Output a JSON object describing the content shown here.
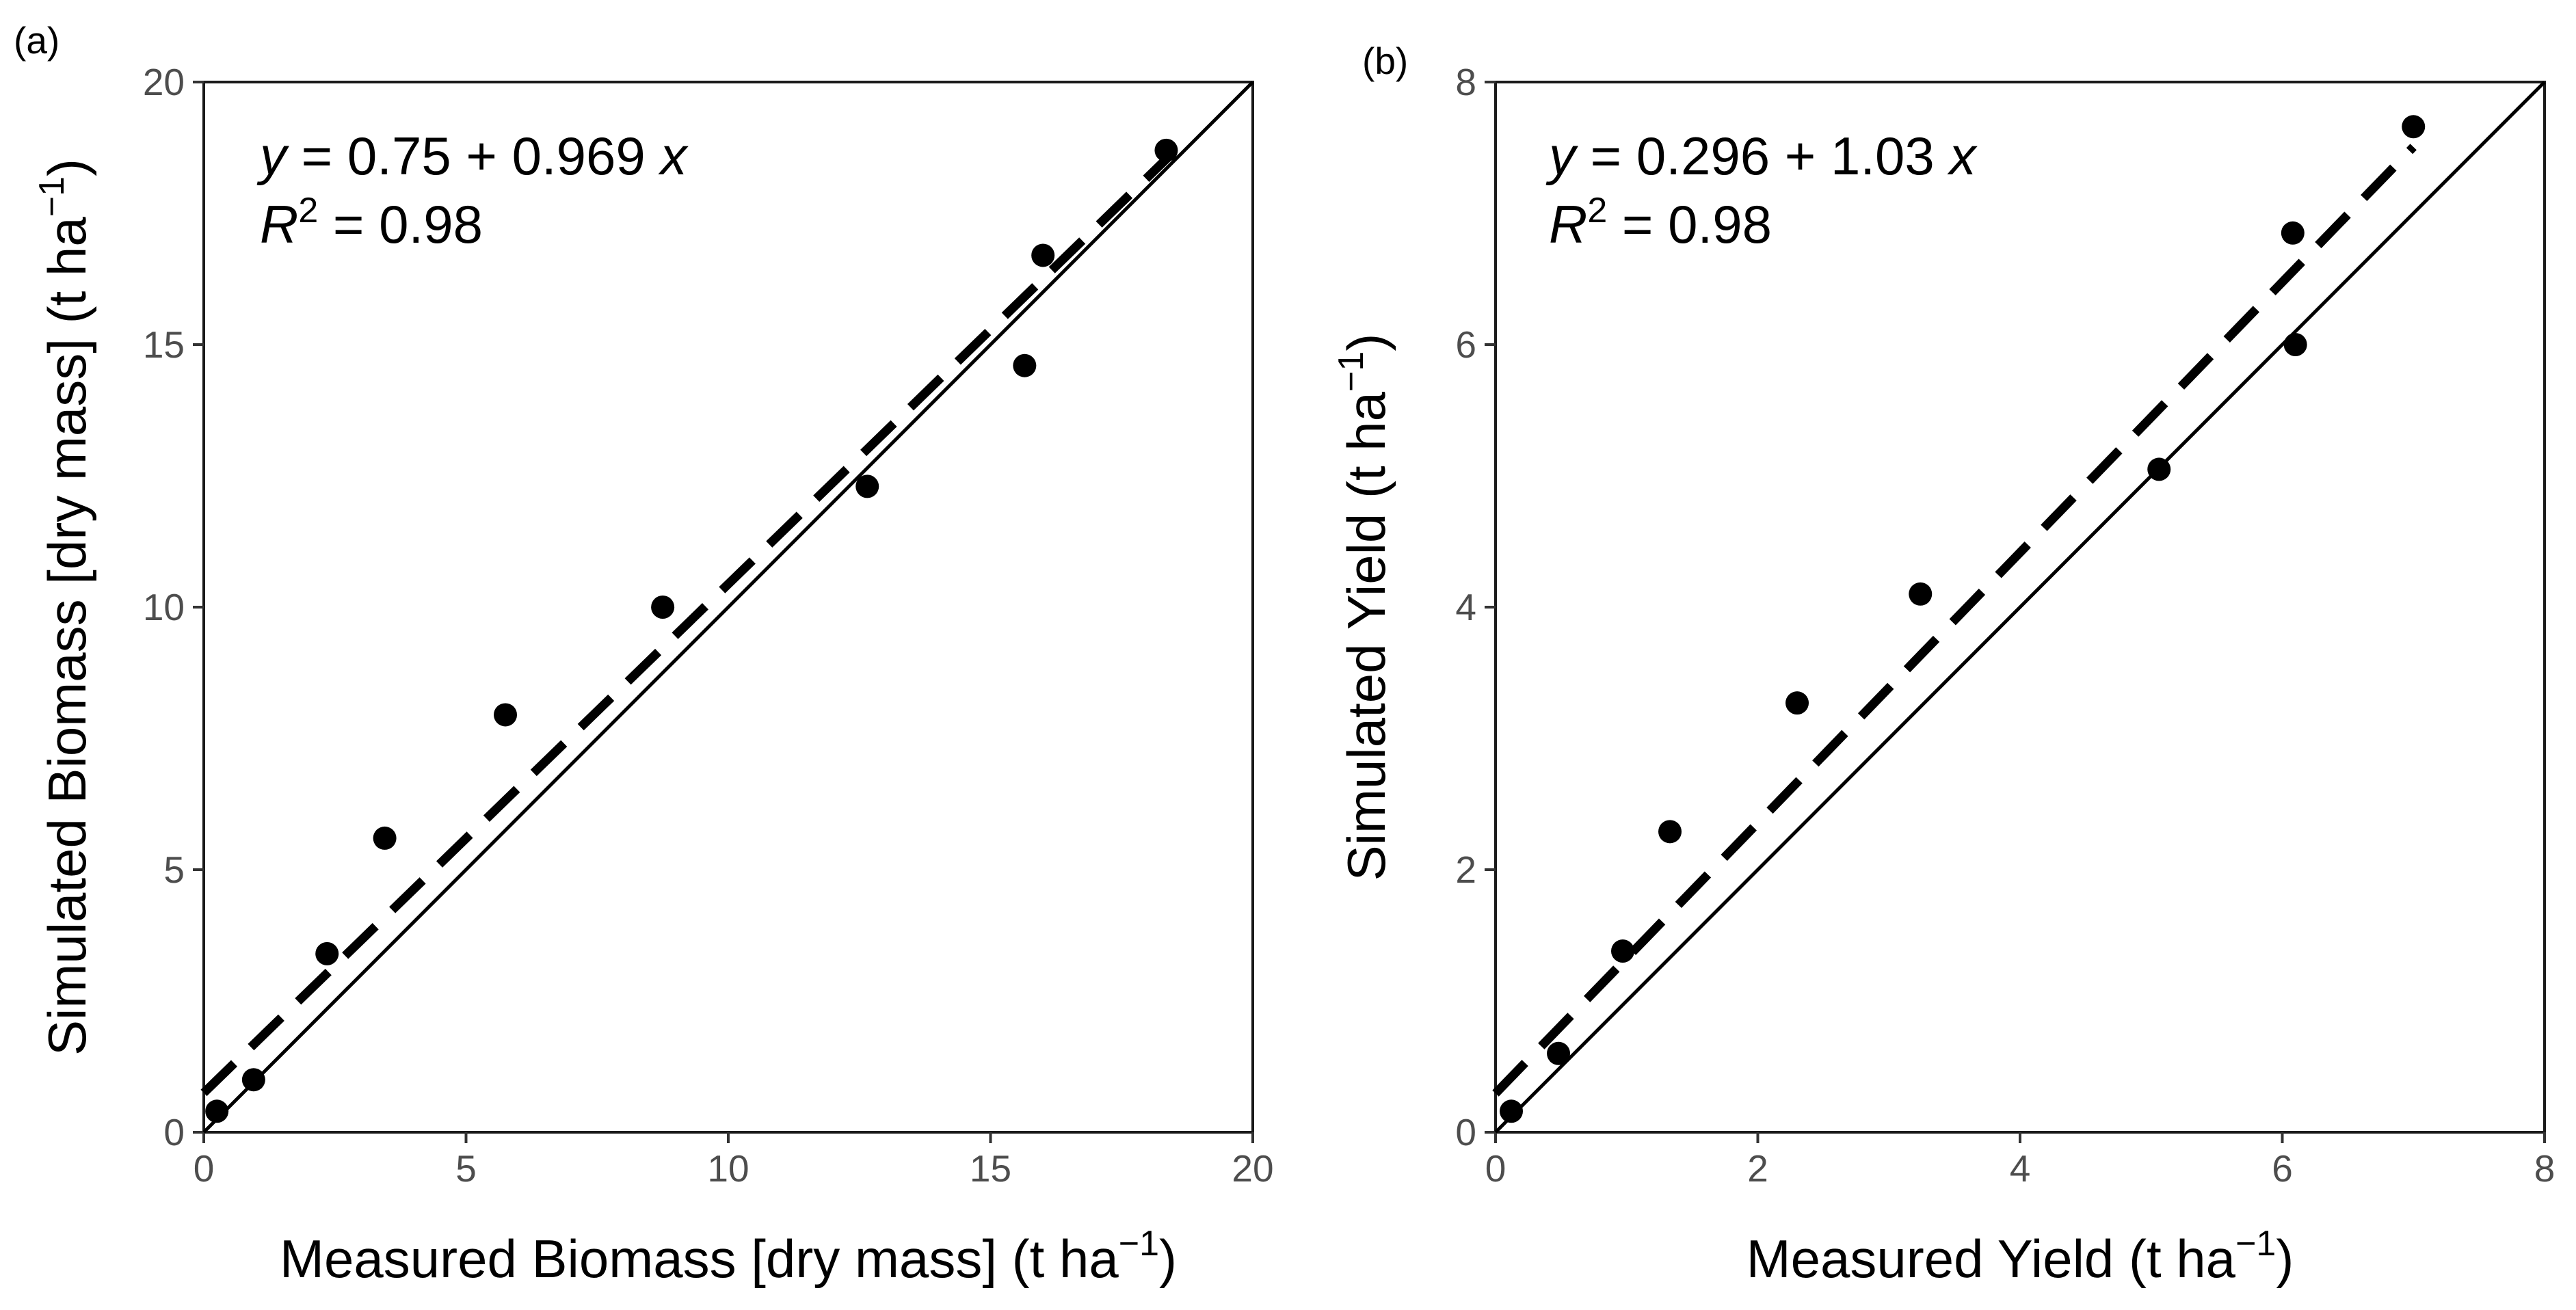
{
  "chart_data": [
    {
      "type": "scatter",
      "panel_label": "(a)",
      "xlabel": "Measured Biomass [dry mass] (t ha",
      "ylabel": "Simulated Biomass [dry mass] (t ha",
      "unit_superscript": "−1",
      "unit_close": ")",
      "xlim": [
        0,
        20
      ],
      "ylim": [
        0,
        20
      ],
      "xticks": [
        0,
        5,
        10,
        15,
        20
      ],
      "yticks": [
        0,
        5,
        10,
        15,
        20
      ],
      "xtick_labels": [
        "0",
        "5",
        "10",
        "15",
        "20"
      ],
      "ytick_labels": [
        "0",
        "5",
        "10",
        "15",
        "20"
      ],
      "points": [
        {
          "x": 0.25,
          "y": 0.4
        },
        {
          "x": 0.95,
          "y": 1.0
        },
        {
          "x": 2.35,
          "y": 3.4
        },
        {
          "x": 3.45,
          "y": 5.6
        },
        {
          "x": 5.75,
          "y": 7.95
        },
        {
          "x": 8.75,
          "y": 10.0
        },
        {
          "x": 12.65,
          "y": 12.3
        },
        {
          "x": 15.65,
          "y": 14.6
        },
        {
          "x": 16.0,
          "y": 16.7
        },
        {
          "x": 18.35,
          "y": 18.7
        }
      ],
      "fit": {
        "intercept": 0.75,
        "slope": 0.969,
        "x_range": [
          0,
          18.4
        ]
      },
      "identity_line": true,
      "equation": {
        "y_var": "y",
        "eq_part": " = 0.75 + 0.969 ",
        "x_var": "x"
      },
      "r2": {
        "letter": "R",
        "sup": "2",
        "value_text": " = 0.98"
      }
    },
    {
      "type": "scatter",
      "panel_label": "(b)",
      "xlabel": "Measured Yield (t ha",
      "ylabel": "Simulated Yield (t ha",
      "unit_superscript": "−1",
      "unit_close": ")",
      "xlim": [
        0,
        8
      ],
      "ylim": [
        0,
        8
      ],
      "xticks": [
        0,
        2,
        4,
        6,
        8
      ],
      "yticks": [
        0,
        2,
        4,
        6,
        8
      ],
      "xtick_labels": [
        "0",
        "2",
        "4",
        "6",
        "8"
      ],
      "ytick_labels": [
        "0",
        "2",
        "4",
        "6",
        "8"
      ],
      "points": [
        {
          "x": 0.12,
          "y": 0.16
        },
        {
          "x": 0.48,
          "y": 0.6
        },
        {
          "x": 0.97,
          "y": 1.38
        },
        {
          "x": 1.33,
          "y": 2.29
        },
        {
          "x": 2.3,
          "y": 3.27
        },
        {
          "x": 3.24,
          "y": 4.1
        },
        {
          "x": 5.06,
          "y": 5.05
        },
        {
          "x": 6.08,
          "y": 6.85
        },
        {
          "x": 6.1,
          "y": 6.0
        },
        {
          "x": 7.0,
          "y": 7.66
        }
      ],
      "fit": {
        "intercept": 0.296,
        "slope": 1.03,
        "x_range": [
          0,
          7.0
        ]
      },
      "identity_line": true,
      "equation": {
        "y_var": "y",
        "eq_part": " = 0.296 + 1.03 ",
        "x_var": "x"
      },
      "r2": {
        "letter": "R",
        "sup": "2",
        "value_text": " = 0.98"
      }
    }
  ]
}
